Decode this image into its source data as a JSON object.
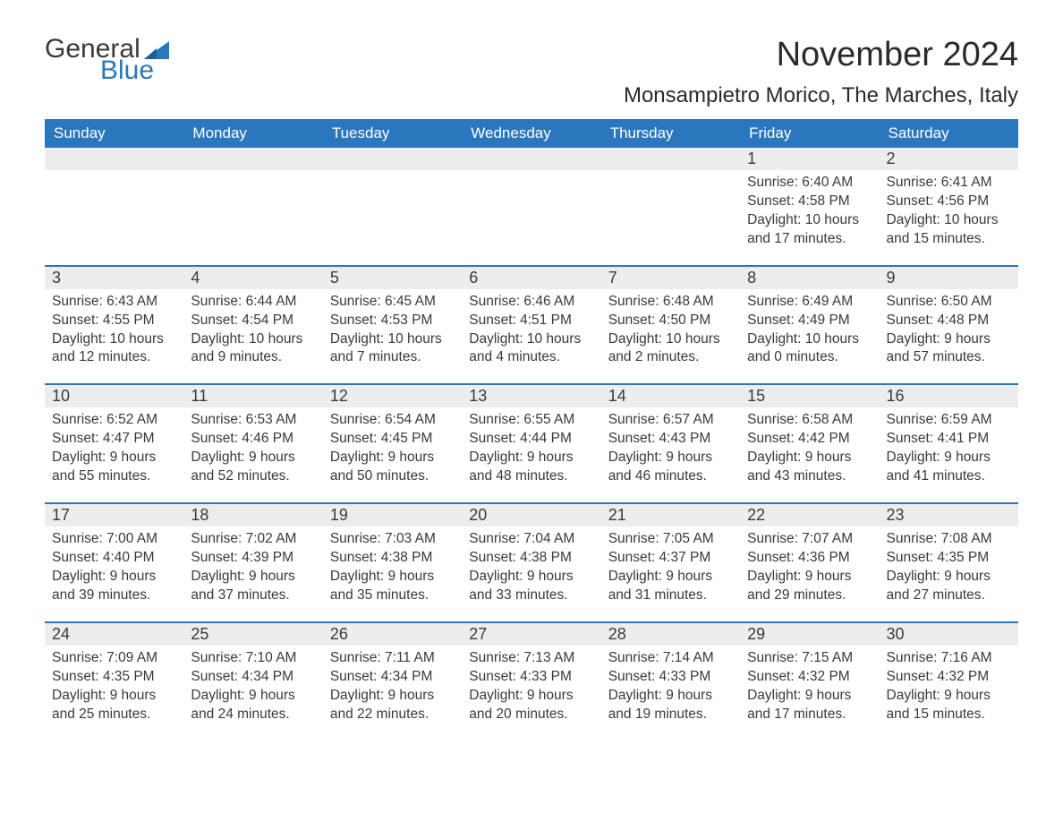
{
  "logo": {
    "text_general": "General",
    "text_blue": "Blue",
    "flag_color": "#2b77bd"
  },
  "title": "November 2024",
  "location": "Monsampietro Morico, The Marches, Italy",
  "colors": {
    "header_bg": "#2b77bd",
    "header_text": "#ffffff",
    "week_divider": "#2b77bd",
    "daynum_bg": "#ededed",
    "text": "#3a3a3a",
    "page_bg": "#ffffff"
  },
  "typography": {
    "title_fontsize": 38,
    "location_fontsize": 24,
    "dow_fontsize": 17,
    "body_fontsize": 15.5
  },
  "days_of_week": [
    "Sunday",
    "Monday",
    "Tuesday",
    "Wednesday",
    "Thursday",
    "Friday",
    "Saturday"
  ],
  "weeks": [
    [
      {
        "n": "",
        "sunrise": "",
        "sunset": "",
        "daylight": ""
      },
      {
        "n": "",
        "sunrise": "",
        "sunset": "",
        "daylight": ""
      },
      {
        "n": "",
        "sunrise": "",
        "sunset": "",
        "daylight": ""
      },
      {
        "n": "",
        "sunrise": "",
        "sunset": "",
        "daylight": ""
      },
      {
        "n": "",
        "sunrise": "",
        "sunset": "",
        "daylight": ""
      },
      {
        "n": "1",
        "sunrise": "Sunrise: 6:40 AM",
        "sunset": "Sunset: 4:58 PM",
        "daylight": "Daylight: 10 hours and 17 minutes."
      },
      {
        "n": "2",
        "sunrise": "Sunrise: 6:41 AM",
        "sunset": "Sunset: 4:56 PM",
        "daylight": "Daylight: 10 hours and 15 minutes."
      }
    ],
    [
      {
        "n": "3",
        "sunrise": "Sunrise: 6:43 AM",
        "sunset": "Sunset: 4:55 PM",
        "daylight": "Daylight: 10 hours and 12 minutes."
      },
      {
        "n": "4",
        "sunrise": "Sunrise: 6:44 AM",
        "sunset": "Sunset: 4:54 PM",
        "daylight": "Daylight: 10 hours and 9 minutes."
      },
      {
        "n": "5",
        "sunrise": "Sunrise: 6:45 AM",
        "sunset": "Sunset: 4:53 PM",
        "daylight": "Daylight: 10 hours and 7 minutes."
      },
      {
        "n": "6",
        "sunrise": "Sunrise: 6:46 AM",
        "sunset": "Sunset: 4:51 PM",
        "daylight": "Daylight: 10 hours and 4 minutes."
      },
      {
        "n": "7",
        "sunrise": "Sunrise: 6:48 AM",
        "sunset": "Sunset: 4:50 PM",
        "daylight": "Daylight: 10 hours and 2 minutes."
      },
      {
        "n": "8",
        "sunrise": "Sunrise: 6:49 AM",
        "sunset": "Sunset: 4:49 PM",
        "daylight": "Daylight: 10 hours and 0 minutes."
      },
      {
        "n": "9",
        "sunrise": "Sunrise: 6:50 AM",
        "sunset": "Sunset: 4:48 PM",
        "daylight": "Daylight: 9 hours and 57 minutes."
      }
    ],
    [
      {
        "n": "10",
        "sunrise": "Sunrise: 6:52 AM",
        "sunset": "Sunset: 4:47 PM",
        "daylight": "Daylight: 9 hours and 55 minutes."
      },
      {
        "n": "11",
        "sunrise": "Sunrise: 6:53 AM",
        "sunset": "Sunset: 4:46 PM",
        "daylight": "Daylight: 9 hours and 52 minutes."
      },
      {
        "n": "12",
        "sunrise": "Sunrise: 6:54 AM",
        "sunset": "Sunset: 4:45 PM",
        "daylight": "Daylight: 9 hours and 50 minutes."
      },
      {
        "n": "13",
        "sunrise": "Sunrise: 6:55 AM",
        "sunset": "Sunset: 4:44 PM",
        "daylight": "Daylight: 9 hours and 48 minutes."
      },
      {
        "n": "14",
        "sunrise": "Sunrise: 6:57 AM",
        "sunset": "Sunset: 4:43 PM",
        "daylight": "Daylight: 9 hours and 46 minutes."
      },
      {
        "n": "15",
        "sunrise": "Sunrise: 6:58 AM",
        "sunset": "Sunset: 4:42 PM",
        "daylight": "Daylight: 9 hours and 43 minutes."
      },
      {
        "n": "16",
        "sunrise": "Sunrise: 6:59 AM",
        "sunset": "Sunset: 4:41 PM",
        "daylight": "Daylight: 9 hours and 41 minutes."
      }
    ],
    [
      {
        "n": "17",
        "sunrise": "Sunrise: 7:00 AM",
        "sunset": "Sunset: 4:40 PM",
        "daylight": "Daylight: 9 hours and 39 minutes."
      },
      {
        "n": "18",
        "sunrise": "Sunrise: 7:02 AM",
        "sunset": "Sunset: 4:39 PM",
        "daylight": "Daylight: 9 hours and 37 minutes."
      },
      {
        "n": "19",
        "sunrise": "Sunrise: 7:03 AM",
        "sunset": "Sunset: 4:38 PM",
        "daylight": "Daylight: 9 hours and 35 minutes."
      },
      {
        "n": "20",
        "sunrise": "Sunrise: 7:04 AM",
        "sunset": "Sunset: 4:38 PM",
        "daylight": "Daylight: 9 hours and 33 minutes."
      },
      {
        "n": "21",
        "sunrise": "Sunrise: 7:05 AM",
        "sunset": "Sunset: 4:37 PM",
        "daylight": "Daylight: 9 hours and 31 minutes."
      },
      {
        "n": "22",
        "sunrise": "Sunrise: 7:07 AM",
        "sunset": "Sunset: 4:36 PM",
        "daylight": "Daylight: 9 hours and 29 minutes."
      },
      {
        "n": "23",
        "sunrise": "Sunrise: 7:08 AM",
        "sunset": "Sunset: 4:35 PM",
        "daylight": "Daylight: 9 hours and 27 minutes."
      }
    ],
    [
      {
        "n": "24",
        "sunrise": "Sunrise: 7:09 AM",
        "sunset": "Sunset: 4:35 PM",
        "daylight": "Daylight: 9 hours and 25 minutes."
      },
      {
        "n": "25",
        "sunrise": "Sunrise: 7:10 AM",
        "sunset": "Sunset: 4:34 PM",
        "daylight": "Daylight: 9 hours and 24 minutes."
      },
      {
        "n": "26",
        "sunrise": "Sunrise: 7:11 AM",
        "sunset": "Sunset: 4:34 PM",
        "daylight": "Daylight: 9 hours and 22 minutes."
      },
      {
        "n": "27",
        "sunrise": "Sunrise: 7:13 AM",
        "sunset": "Sunset: 4:33 PM",
        "daylight": "Daylight: 9 hours and 20 minutes."
      },
      {
        "n": "28",
        "sunrise": "Sunrise: 7:14 AM",
        "sunset": "Sunset: 4:33 PM",
        "daylight": "Daylight: 9 hours and 19 minutes."
      },
      {
        "n": "29",
        "sunrise": "Sunrise: 7:15 AM",
        "sunset": "Sunset: 4:32 PM",
        "daylight": "Daylight: 9 hours and 17 minutes."
      },
      {
        "n": "30",
        "sunrise": "Sunrise: 7:16 AM",
        "sunset": "Sunset: 4:32 PM",
        "daylight": "Daylight: 9 hours and 15 minutes."
      }
    ]
  ]
}
